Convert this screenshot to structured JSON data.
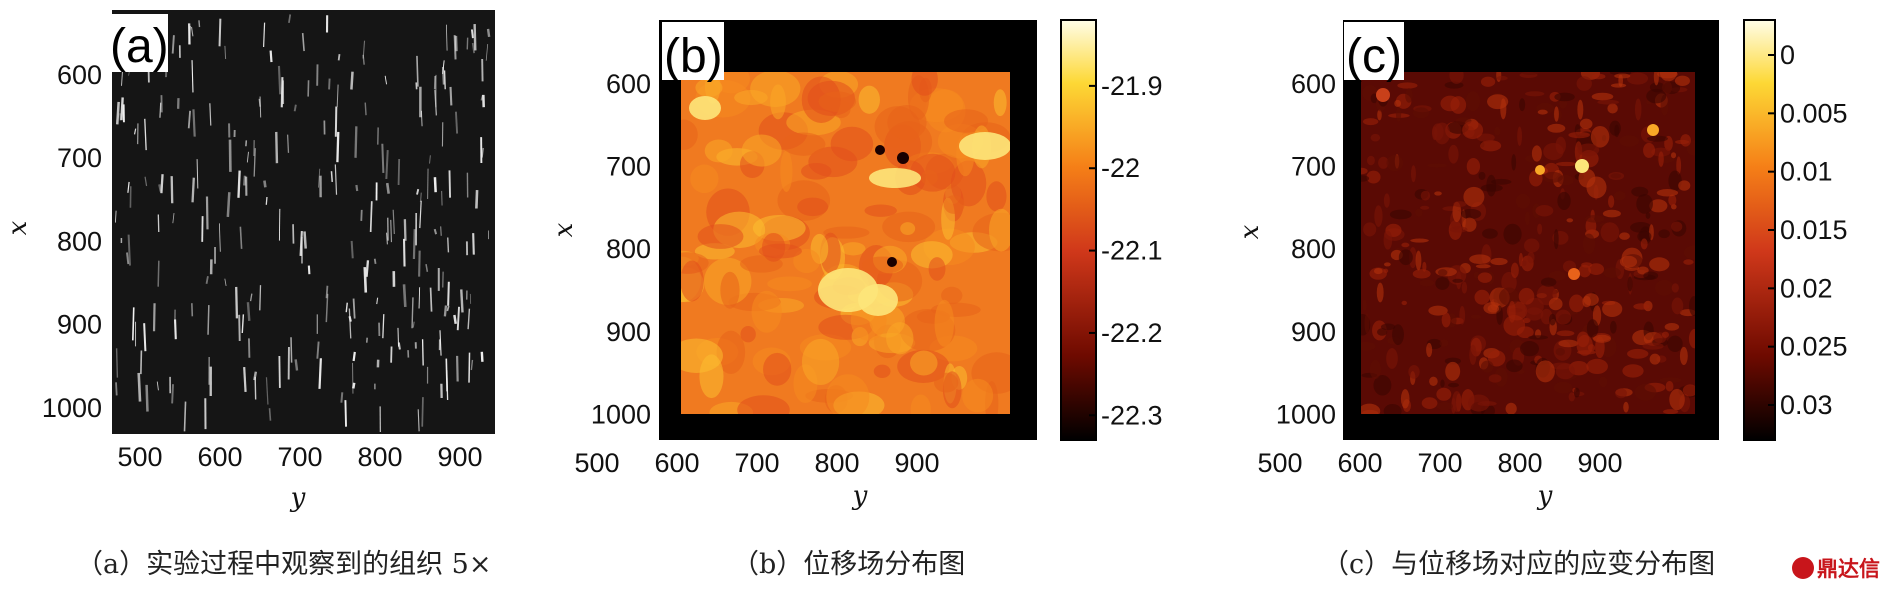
{
  "panels": [
    {
      "tag": "(a)",
      "kind": "micrograph",
      "xlabel": "y",
      "ylabel": "x",
      "x_ticks": [
        "500",
        "600",
        "700",
        "800",
        "900"
      ],
      "y_ticks": [
        "600",
        "700",
        "800",
        "900",
        "1000"
      ],
      "caption": "（a）实验过程中观察到的组织  5×"
    },
    {
      "tag": "(b)",
      "kind": "heatmap",
      "xlabel": "y",
      "ylabel": "x",
      "x_ticks": [
        "500",
        "600",
        "700",
        "800",
        "900"
      ],
      "y_ticks": [
        "600",
        "700",
        "800",
        "900",
        "1000"
      ],
      "colorbar_ticks": [
        "-21.9",
        "-22",
        "-22.1",
        "-22.2",
        "-22.3"
      ],
      "caption": "（b）位移场分布图"
    },
    {
      "tag": "(c)",
      "kind": "heatmap",
      "xlabel": "y",
      "ylabel": "x",
      "x_ticks": [
        "500",
        "600",
        "700",
        "800",
        "900"
      ],
      "y_ticks": [
        "600",
        "700",
        "800",
        "900",
        "1000"
      ],
      "colorbar_ticks": [
        "0.03",
        "0.025",
        "0.02",
        "0.015",
        "0.01",
        "0.005",
        "0"
      ],
      "caption": "（c）与位移场对应的应变分布图"
    }
  ],
  "chart_data": [
    {
      "type": "other",
      "tag": "(a)",
      "xlabel": "y",
      "ylabel": "x",
      "xlim": [
        455,
        915
      ],
      "ylim": [
        1030,
        555
      ],
      "x_ticks": [
        500,
        600,
        700,
        800,
        900
      ],
      "y_ticks": [
        600,
        700,
        800,
        900,
        1000
      ]
    },
    {
      "type": "heatmap",
      "tag": "(b)",
      "xlabel": "y",
      "ylabel": "x",
      "xlim": [
        455,
        915
      ],
      "ylim": [
        1030,
        555
      ],
      "x_ticks": [
        500,
        600,
        700,
        800,
        900
      ],
      "y_ticks": [
        600,
        700,
        800,
        900,
        1000
      ],
      "data_extent": {
        "x": [
          480,
          885
        ],
        "y": [
          585,
          1000
        ]
      },
      "colorbar": {
        "min": -22.33,
        "max": -21.82,
        "ticks": [
          -21.9,
          -22,
          -22.1,
          -22.2,
          -22.3
        ]
      },
      "colormap": [
        "#000000",
        "#6e0a00",
        "#d0381a",
        "#f57f17",
        "#fdd835",
        "#fffde7"
      ]
    },
    {
      "type": "heatmap",
      "tag": "(c)",
      "xlabel": "y",
      "ylabel": "x",
      "xlim": [
        455,
        915
      ],
      "ylim": [
        1030,
        555
      ],
      "x_ticks": [
        500,
        600,
        700,
        800,
        900
      ],
      "y_ticks": [
        600,
        700,
        800,
        900,
        1000
      ],
      "data_extent": {
        "x": [
          480,
          885
        ],
        "y": [
          585,
          1000
        ]
      },
      "colorbar": {
        "min": -0.003,
        "max": 0.033,
        "ticks": [
          0,
          0.005,
          0.01,
          0.015,
          0.02,
          0.025,
          0.03
        ]
      },
      "colormap": [
        "#000000",
        "#6e0a00",
        "#d0381a",
        "#f57f17",
        "#fdd835",
        "#fffde7"
      ]
    }
  ],
  "watermark": "鼎达信",
  "colors": {
    "frame": "#000000",
    "hot_low": "#000000",
    "hot_high": "#fffde7",
    "logo": "#c8151b"
  }
}
